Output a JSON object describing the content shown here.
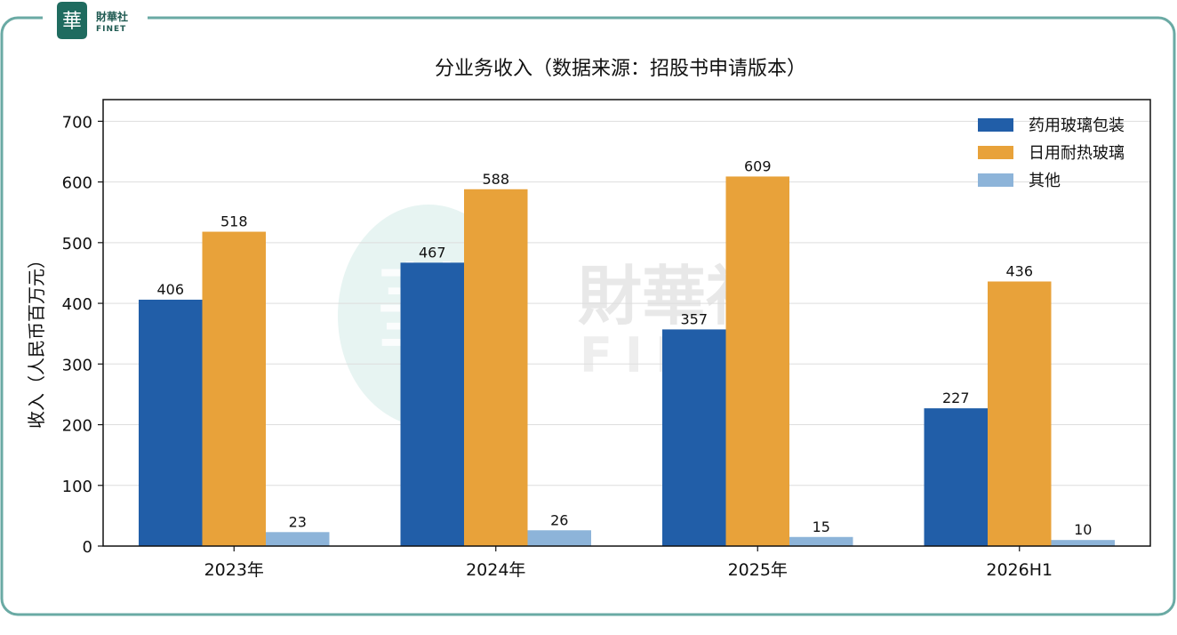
{
  "logo": {
    "glyph": "華",
    "name_cn": "財華社",
    "name_en": "FINET"
  },
  "watermark": {
    "glyph": "華",
    "name_cn": "財華社",
    "name_en": "FINET"
  },
  "colors": {
    "border": "#6aaaa4",
    "series": [
      "#215ea8",
      "#e8a23a",
      "#8db4d9"
    ],
    "logo_green": "#1f6b5f"
  },
  "chart_data": {
    "type": "bar",
    "title": "分业务收入（数据来源：招股书申请版本）",
    "xlabel": "",
    "ylabel": "收入（人民币百万元）",
    "categories": [
      "2023年",
      "2024年",
      "2025年",
      "2026H1"
    ],
    "series": [
      {
        "name": "药用玻璃包装",
        "values": [
          406,
          467,
          357,
          227
        ]
      },
      {
        "name": "日用耐热玻璃",
        "values": [
          518,
          588,
          609,
          436
        ]
      },
      {
        "name": "其他",
        "values": [
          23,
          26,
          15,
          10
        ]
      }
    ],
    "ylim": [
      0,
      700
    ],
    "yticks": [
      0,
      100,
      200,
      300,
      400,
      500,
      600,
      700
    ],
    "grid": true,
    "legend_position": "top-right"
  }
}
